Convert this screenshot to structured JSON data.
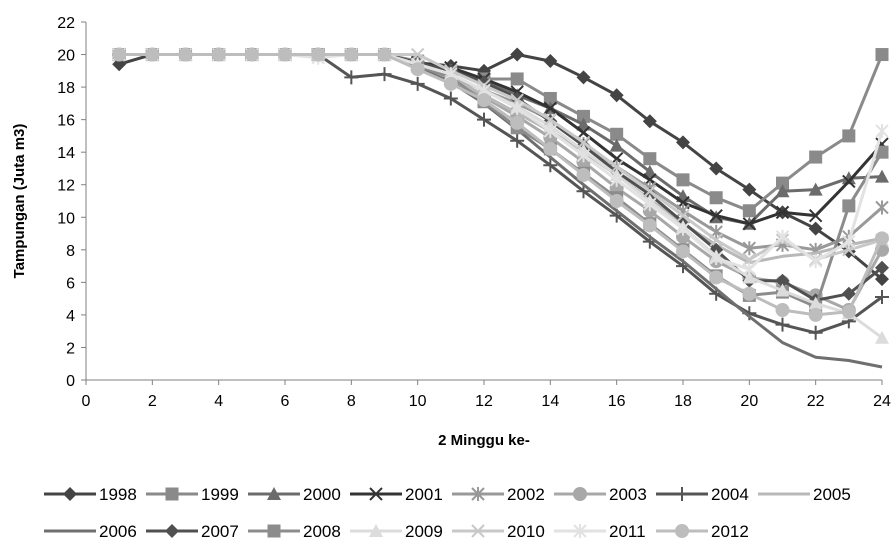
{
  "chart_data": {
    "type": "line",
    "title": "",
    "xlabel": "2 Minggu ke-",
    "ylabel": "Tampungan (Juta m3)",
    "xlim": [
      0,
      24
    ],
    "ylim": [
      0,
      22
    ],
    "xticks": [
      "0",
      "2",
      "4",
      "6",
      "8",
      "10",
      "12",
      "14",
      "16",
      "18",
      "20",
      "22",
      "24"
    ],
    "yticks": [
      "0",
      "2",
      "4",
      "6",
      "8",
      "10",
      "12",
      "14",
      "16",
      "18",
      "20",
      "22"
    ],
    "grid": false,
    "legend_position": "bottom",
    "x": [
      1,
      2,
      3,
      4,
      5,
      6,
      7,
      8,
      9,
      10,
      11,
      12,
      13,
      14,
      15,
      16,
      17,
      18,
      19,
      20,
      21,
      22,
      23,
      24
    ],
    "series": [
      {
        "name": "1998",
        "color": "#444444",
        "marker": "diamond",
        "values": [
          19.4,
          20,
          20,
          20,
          20,
          20,
          20,
          20,
          20,
          19.5,
          19.3,
          19.0,
          20.0,
          19.6,
          18.6,
          17.5,
          15.9,
          14.6,
          13.0,
          11.7,
          10.3,
          9.3,
          7.9,
          6.2
        ]
      },
      {
        "name": "1999",
        "color": "#8a8a8a",
        "marker": "square",
        "values": [
          20,
          20,
          20,
          20,
          20,
          20,
          20,
          20,
          20,
          19.6,
          19.0,
          18.5,
          18.5,
          17.3,
          16.2,
          15.1,
          13.6,
          12.3,
          11.2,
          10.4,
          12.1,
          13.7,
          15.0,
          20.0
        ]
      },
      {
        "name": "2000",
        "color": "#6b6b6b",
        "marker": "triangle",
        "values": [
          20,
          20,
          20,
          20,
          20,
          20,
          20,
          20,
          20,
          19.4,
          19.0,
          18.3,
          17.5,
          16.7,
          15.7,
          14.4,
          12.8,
          11.3,
          10.0,
          9.6,
          11.6,
          11.7,
          12.4,
          12.5
        ]
      },
      {
        "name": "2001",
        "color": "#333333",
        "marker": "x",
        "values": [
          20,
          20,
          20,
          20,
          20,
          20,
          20,
          20,
          20,
          19.5,
          19.2,
          18.5,
          17.7,
          16.7,
          15.2,
          13.6,
          12.3,
          10.9,
          10.1,
          9.6,
          10.3,
          10.1,
          12.2,
          14.5
        ]
      },
      {
        "name": "2002",
        "color": "#999999",
        "marker": "star",
        "values": [
          20,
          20,
          20,
          20,
          20,
          20,
          20,
          20,
          20,
          19.4,
          18.7,
          17.8,
          17.0,
          16.0,
          14.5,
          13.1,
          11.8,
          10.4,
          9.1,
          8.1,
          8.3,
          8.0,
          8.8,
          10.6
        ]
      },
      {
        "name": "2003",
        "color": "#a8a8a8",
        "marker": "circle",
        "values": [
          20,
          20,
          20,
          20,
          20,
          20,
          20,
          20,
          20,
          19.3,
          18.5,
          17.4,
          16.2,
          14.9,
          13.4,
          11.8,
          10.4,
          8.8,
          7.3,
          6.3,
          6.0,
          5.2,
          4.3,
          8.0
        ]
      },
      {
        "name": "2004",
        "color": "#555555",
        "marker": "plus",
        "values": [
          20,
          20,
          20,
          20,
          20,
          20,
          20,
          18.6,
          18.8,
          18.2,
          17.3,
          16.0,
          14.7,
          13.2,
          11.6,
          10.1,
          8.5,
          7.0,
          5.3,
          4.1,
          3.4,
          2.9,
          3.6,
          5.1
        ]
      },
      {
        "name": "2005",
        "color": "#b8b8b8",
        "marker": "none",
        "values": [
          20,
          20,
          20,
          20,
          20,
          20,
          20,
          20,
          20,
          19.4,
          18.6,
          17.5,
          16.4,
          15.3,
          14.0,
          12.6,
          11.1,
          9.6,
          8.3,
          7.2,
          7.6,
          7.8,
          8.3,
          8.7
        ]
      },
      {
        "name": "2006",
        "color": "#6f6f6f",
        "marker": "none",
        "values": [
          20,
          20,
          20,
          20,
          20,
          20,
          20,
          20,
          20,
          19.2,
          18.3,
          17.0,
          15.4,
          13.7,
          12.0,
          10.4,
          8.8,
          7.3,
          5.6,
          3.9,
          2.3,
          1.4,
          1.2,
          0.8
        ]
      },
      {
        "name": "2007",
        "color": "#505050",
        "marker": "diamond",
        "values": [
          20,
          20,
          20,
          20,
          20,
          20,
          20,
          20,
          20,
          19.5,
          19.0,
          18.3,
          17.3,
          15.9,
          14.4,
          12.8,
          11.4,
          9.7,
          8.0,
          6.1,
          6.1,
          4.9,
          5.3,
          6.9
        ]
      },
      {
        "name": "2008",
        "color": "#8c8c8c",
        "marker": "square",
        "values": [
          20,
          20,
          20,
          20,
          20,
          20,
          20,
          20,
          20,
          19.3,
          18.6,
          17.1,
          15.5,
          14.2,
          12.7,
          11.2,
          9.6,
          8.0,
          6.4,
          5.2,
          5.4,
          4.5,
          10.7,
          14.0
        ]
      },
      {
        "name": "2009",
        "color": "#dcdcdc",
        "marker": "triangle",
        "values": [
          20,
          20,
          20,
          20,
          20,
          20,
          20,
          20,
          20,
          19.4,
          18.8,
          17.8,
          16.8,
          15.6,
          14.1,
          12.6,
          11.0,
          9.4,
          7.6,
          6.3,
          5.5,
          4.7,
          4.1,
          2.6
        ]
      },
      {
        "name": "2010",
        "color": "#c8c8c8",
        "marker": "x",
        "values": [
          20,
          20,
          20,
          20,
          20,
          20,
          20,
          20,
          20,
          20.0,
          19.0,
          18.1,
          17.2,
          16.0,
          14.6,
          13.1,
          11.6,
          10.1,
          8.6,
          7.4,
          8.6,
          7.4,
          8.0,
          8.6
        ]
      },
      {
        "name": "2011",
        "color": "#e2e2e2",
        "marker": "star",
        "values": [
          20,
          20,
          20,
          20,
          20,
          20,
          19.8,
          20,
          20,
          19.4,
          18.8,
          17.8,
          16.7,
          15.3,
          13.8,
          12.3,
          10.8,
          9.3,
          7.5,
          6.8,
          8.8,
          7.3,
          8.5,
          15.3
        ]
      },
      {
        "name": "2012",
        "color": "#bdbdbd",
        "marker": "circle",
        "values": [
          20,
          20,
          20,
          20,
          20,
          20,
          20,
          20,
          20,
          19.1,
          18.2,
          17.2,
          15.8,
          14.2,
          12.6,
          11.0,
          9.5,
          7.9,
          6.3,
          5.3,
          4.3,
          4.0,
          4.2,
          8.7
        ]
      }
    ]
  }
}
